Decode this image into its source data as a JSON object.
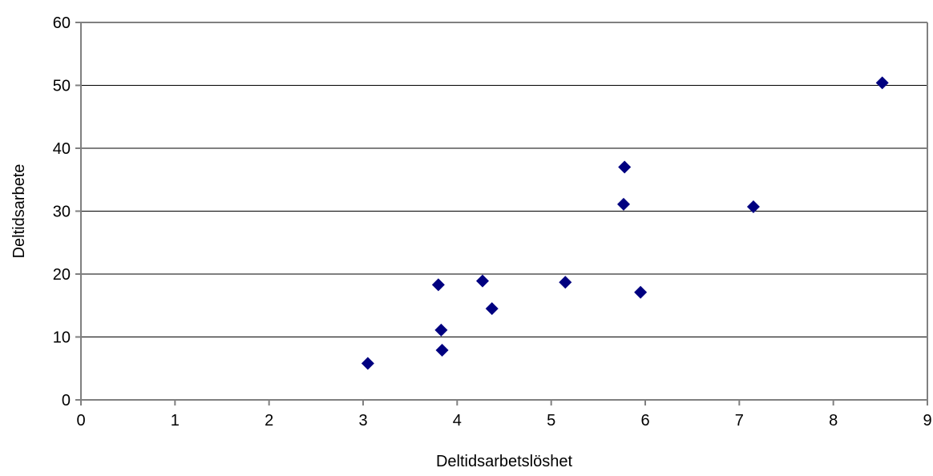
{
  "chart_data": {
    "type": "scatter",
    "xlabel": "Deltidsarbetslöshet",
    "ylabel": "Deltidsarbete",
    "xlim": [
      0,
      9
    ],
    "ylim": [
      0,
      60
    ],
    "xticks": [
      "0",
      "1",
      "2",
      "3",
      "4",
      "5",
      "6",
      "7",
      "8",
      "9"
    ],
    "yticks": [
      "0",
      "10",
      "20",
      "30",
      "40",
      "50",
      "60"
    ],
    "grid": "horizontal",
    "legend": "none",
    "marker": "diamond",
    "marker_color": "#000080",
    "points": [
      {
        "x": 3.05,
        "y": 5.8
      },
      {
        "x": 3.8,
        "y": 18.3
      },
      {
        "x": 3.83,
        "y": 11.1
      },
      {
        "x": 3.84,
        "y": 7.9
      },
      {
        "x": 4.27,
        "y": 18.9
      },
      {
        "x": 4.37,
        "y": 14.5
      },
      {
        "x": 5.15,
        "y": 18.7
      },
      {
        "x": 5.78,
        "y": 37.0
      },
      {
        "x": 5.77,
        "y": 31.1
      },
      {
        "x": 5.95,
        "y": 17.1
      },
      {
        "x": 7.15,
        "y": 30.7
      },
      {
        "x": 8.52,
        "y": 50.4
      }
    ]
  }
}
